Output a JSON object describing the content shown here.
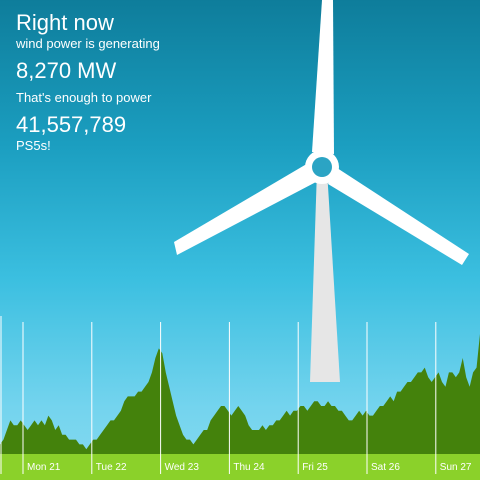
{
  "header": {
    "title": "Right now",
    "line1": "wind power is generating",
    "power": "8,270 MW",
    "line2": "That's enough to power",
    "count": "41,557,789",
    "unit": "PS5s!"
  },
  "colors": {
    "sky_top": "#0e7d9b",
    "sky_bottom": "#86daf0",
    "area_fill": "#44820c",
    "ground": "#8bd12a",
    "turbine": "#ffffff",
    "tower": "#e6e6e6"
  },
  "chart_data": {
    "type": "area",
    "x_labels": [
      "Mon 21",
      "Tue 22",
      "Wed 23",
      "Thu 24",
      "Fri 25",
      "Sat 26",
      "Sun 27"
    ],
    "values": [
      2,
      3,
      5,
      7,
      6,
      6,
      7,
      6,
      5,
      6,
      7,
      6,
      7,
      6,
      8,
      7,
      5,
      6,
      4,
      4,
      3,
      3,
      3,
      2,
      2,
      1,
      2,
      3,
      3,
      4,
      5,
      6,
      7,
      7,
      8,
      9,
      11,
      12,
      12,
      12,
      13,
      13,
      14,
      15,
      17,
      20,
      22,
      21,
      17,
      14,
      11,
      8,
      6,
      4,
      3,
      3,
      2,
      3,
      4,
      5,
      5,
      7,
      8,
      9,
      10,
      10,
      9,
      8,
      9,
      10,
      9,
      8,
      6,
      5,
      5,
      5,
      6,
      5,
      6,
      6,
      7,
      7,
      8,
      9,
      8,
      9,
      9,
      10,
      10,
      9,
      10,
      11,
      11,
      10,
      10,
      11,
      10,
      10,
      9,
      9,
      8,
      7,
      7,
      8,
      9,
      8,
      9,
      8,
      8,
      9,
      10,
      10,
      11,
      12,
      11,
      13,
      13,
      14,
      15,
      15,
      16,
      17,
      17,
      18,
      16,
      15,
      16,
      17,
      15,
      14,
      17,
      17,
      16,
      17,
      20,
      16,
      14,
      17,
      18,
      25
    ],
    "ylim": [
      0,
      30
    ]
  }
}
